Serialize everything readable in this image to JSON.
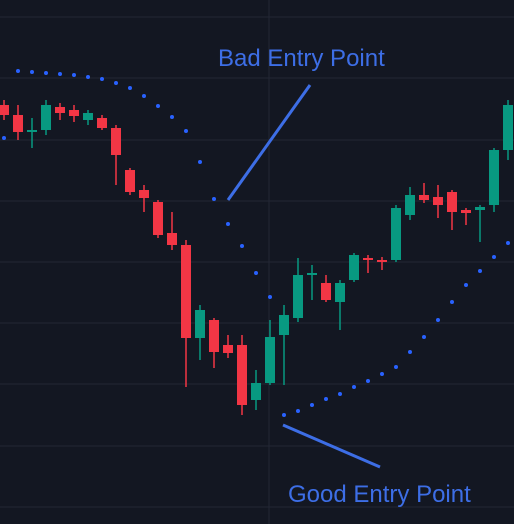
{
  "chart_data": {
    "type": "candlestick",
    "annotations": [
      "Bad Entry Point",
      "Good Entry Point"
    ],
    "open": [
      419,
      409,
      392,
      394,
      417,
      414,
      404,
      406,
      396,
      354,
      334,
      322,
      291,
      279,
      186,
      204,
      179,
      179,
      124,
      141,
      189,
      206,
      249,
      241,
      222,
      244,
      266,
      264,
      264,
      309,
      329,
      327,
      332,
      314,
      314,
      319,
      374
    ],
    "high": [
      424,
      419,
      406,
      424,
      421,
      419,
      414,
      409,
      399,
      356,
      339,
      324,
      312,
      284,
      219,
      206,
      189,
      189,
      154,
      204,
      219,
      266,
      259,
      249,
      244,
      271,
      269,
      267,
      319,
      337,
      341,
      339,
      334,
      316,
      319,
      376,
      424
    ],
    "low": [
      404,
      384,
      376,
      389,
      404,
      402,
      399,
      394,
      339,
      329,
      312,
      286,
      274,
      137,
      164,
      156,
      166,
      109,
      114,
      139,
      139,
      202,
      224,
      222,
      194,
      242,
      251,
      254,
      262,
      304,
      321,
      306,
      294,
      299,
      282,
      312,
      364
    ],
    "close": [
      409,
      392,
      394,
      419,
      411,
      408,
      411,
      396,
      369,
      332,
      326,
      289,
      279,
      186,
      214,
      172,
      171,
      119,
      141,
      187,
      209,
      249,
      251,
      224,
      241,
      269,
      264,
      262,
      316,
      329,
      324,
      319,
      312,
      311,
      317,
      374,
      419
    ],
    "sar": [
      386,
      453,
      452,
      451,
      450,
      449,
      447,
      445,
      441,
      436,
      428,
      418,
      407,
      393,
      362,
      325,
      300,
      278,
      251,
      227,
      109,
      113,
      119,
      125,
      130,
      137,
      143,
      150,
      157,
      172,
      187,
      204,
      222,
      239,
      253,
      267,
      281
    ],
    "up_color": "#089981",
    "down_color": "#f23645",
    "sar_color": "#2962ff",
    "ylim": [
      0,
      524
    ]
  }
}
